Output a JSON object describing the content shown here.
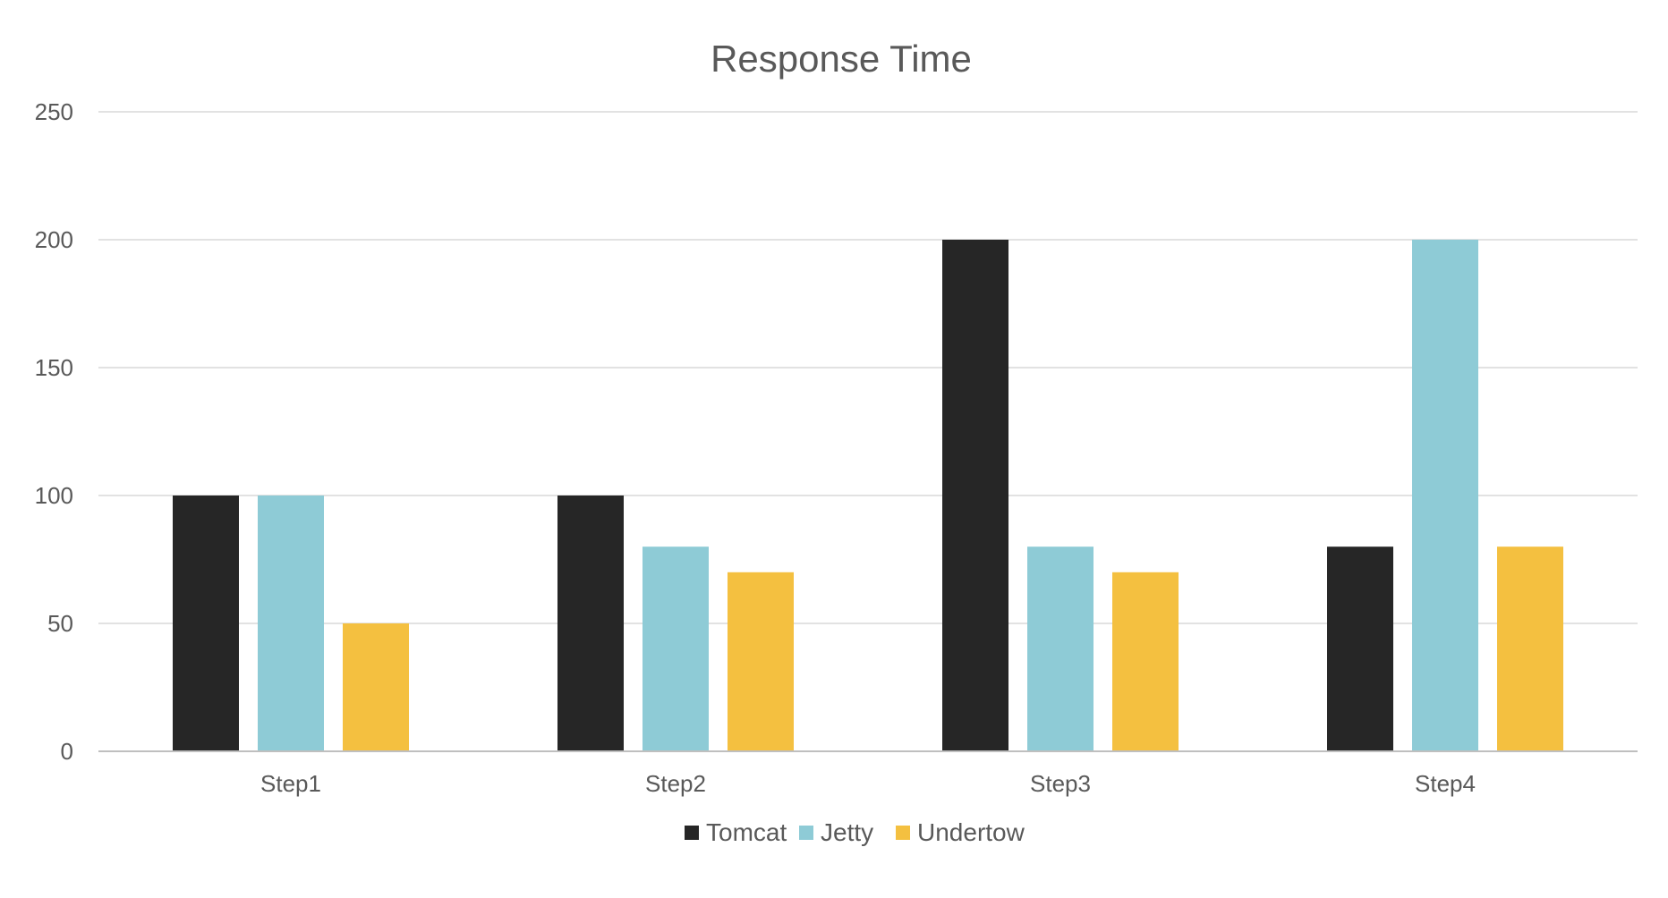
{
  "chart_data": {
    "type": "bar",
    "title": "Response Time",
    "xlabel": "",
    "ylabel": "",
    "categories": [
      "Step1",
      "Step2",
      "Step3",
      "Step4"
    ],
    "series": [
      {
        "name": "Tomcat",
        "color": "#262626",
        "values": [
          100,
          100,
          200,
          80
        ]
      },
      {
        "name": "Jetty",
        "color": "#8ecbd6",
        "values": [
          100,
          80,
          80,
          200
        ]
      },
      {
        "name": "Undertow",
        "color": "#f4c040",
        "values": [
          50,
          70,
          70,
          80
        ]
      }
    ],
    "ylim": [
      0,
      250
    ],
    "yticks": [
      "0",
      "50",
      "100",
      "150",
      "200",
      "250"
    ],
    "grid": true,
    "legend_position": "bottom"
  }
}
